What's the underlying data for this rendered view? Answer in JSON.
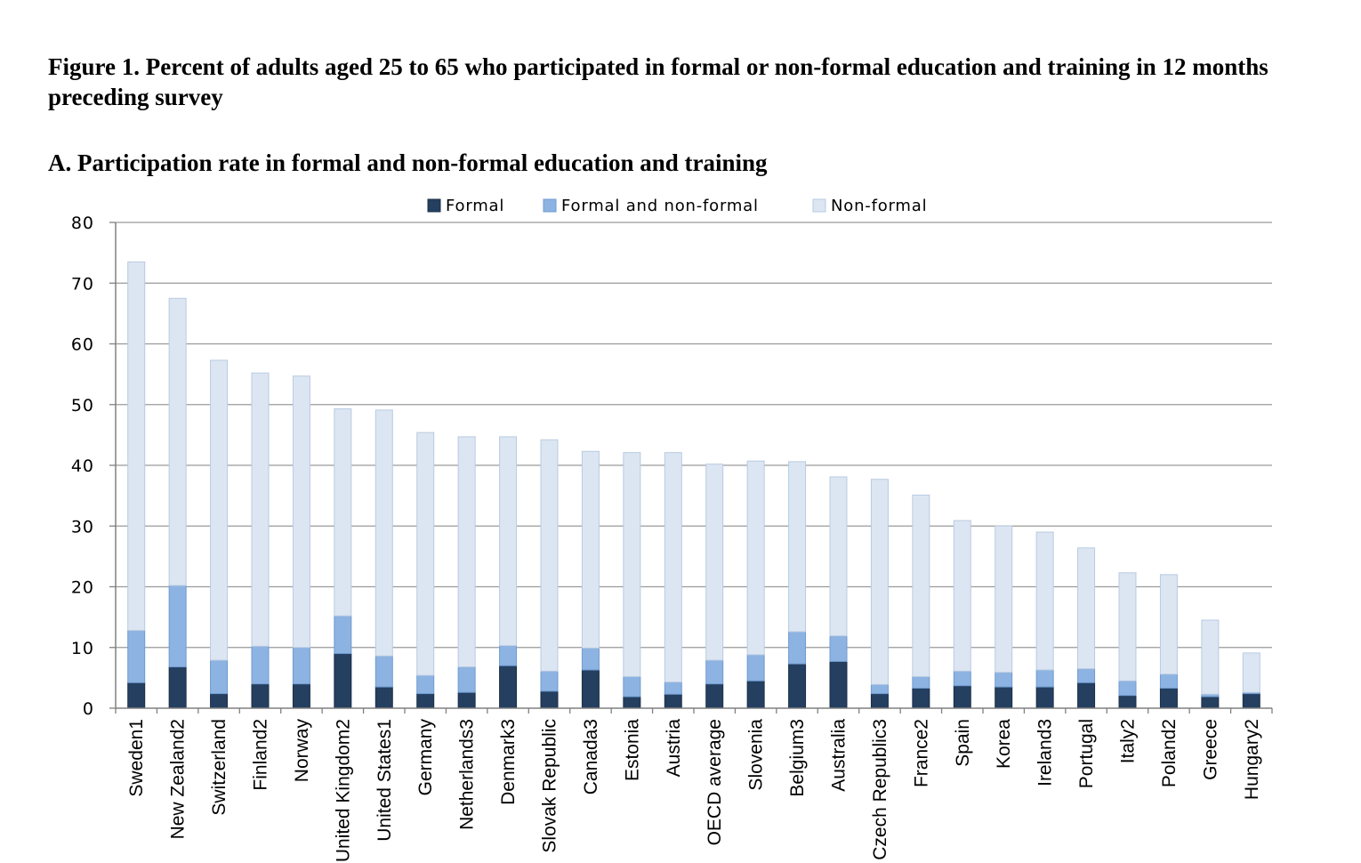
{
  "figure_title": "Figure 1. Percent of adults aged 25 to 65 who participated in formal or non-formal education and training in 12 months preceding survey",
  "panel_title": "A. Participation rate in formal and non-formal education and training",
  "chart_data": {
    "type": "bar",
    "stacked": true,
    "title": "",
    "xlabel": "",
    "ylabel": "",
    "ylim": [
      0,
      80
    ],
    "yticks": [
      0,
      10,
      20,
      30,
      40,
      50,
      60,
      70,
      80
    ],
    "grid": true,
    "legend_position": "top",
    "categories": [
      "Sweden1",
      "New Zealand2",
      "Switzerland",
      "Finland2",
      "Norway",
      "United Kingdom2",
      "United States1",
      "Germany",
      "Netherlands3",
      "Denmark3",
      "Slovak Republic",
      "Canada3",
      "Estonia",
      "Austria",
      "OECD average",
      "Slovenia",
      "Belgium3",
      "Australia",
      "Czech Republic3",
      "France2",
      "Spain",
      "Korea",
      "Ireland3",
      "Portugal",
      "Italy2",
      "Poland2",
      "Greece",
      "Hungary2"
    ],
    "series": [
      {
        "name": "Formal",
        "color": "#243f60",
        "values": [
          4.2,
          6.8,
          2.4,
          4.0,
          4.0,
          9.0,
          3.5,
          2.4,
          2.6,
          7.0,
          2.8,
          6.3,
          1.9,
          2.3,
          4.0,
          4.5,
          7.3,
          7.7,
          2.4,
          3.3,
          3.7,
          3.5,
          3.5,
          4.2,
          2.1,
          3.3,
          1.9,
          2.4
        ]
      },
      {
        "name": "Formal and non-formal",
        "color": "#8db3e2",
        "values": [
          8.6,
          13.4,
          5.5,
          6.2,
          6.0,
          6.2,
          5.1,
          3.0,
          4.2,
          3.3,
          3.3,
          3.6,
          3.3,
          2.0,
          3.9,
          4.3,
          5.3,
          4.2,
          1.5,
          1.9,
          2.4,
          2.4,
          2.8,
          2.3,
          2.4,
          2.3,
          0.4,
          0.2
        ]
      },
      {
        "name": "Non-formal",
        "color": "#dce6f2",
        "values": [
          60.7,
          47.3,
          49.4,
          45.0,
          44.7,
          34.1,
          40.5,
          40.0,
          37.9,
          34.4,
          38.1,
          32.4,
          36.9,
          37.8,
          32.3,
          31.9,
          28.0,
          26.2,
          33.8,
          29.9,
          24.8,
          24.1,
          22.7,
          19.9,
          17.8,
          16.4,
          12.2,
          6.5
        ]
      }
    ]
  }
}
